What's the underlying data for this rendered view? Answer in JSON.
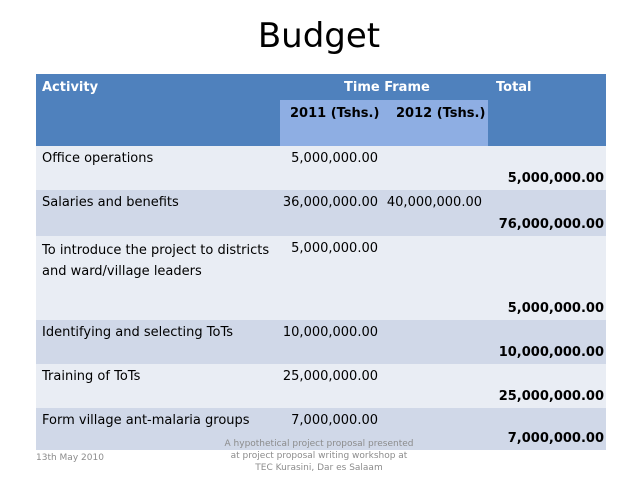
{
  "slide": {
    "title": "Budget"
  },
  "table": {
    "header": {
      "activity": "Activity",
      "time_frame": "Time Frame",
      "total": "Total",
      "year_2011": "2011 (Tshs.)",
      "year_2012": "2012 (Tshs.)"
    },
    "rows": [
      {
        "activity": "Office operations",
        "y2011": "5,000,000.00",
        "y2012": "",
        "total": "5,000,000.00"
      },
      {
        "activity": "Salaries and benefits",
        "y2011": "36,000,000.00",
        "y2012": "40,000,000.00",
        "total": "76,000,000.00"
      },
      {
        "activity": "To introduce the project to districts and ward/village leaders",
        "y2011": "5,000,000.00",
        "y2012": "",
        "total": "5,000,000.00"
      },
      {
        "activity": "Identifying and selecting ToTs",
        "y2011": "10,000,000.00",
        "y2012": "",
        "total": "10,000,000.00"
      },
      {
        "activity": "Training of ToTs",
        "y2011": "25,000,000.00",
        "y2012": "",
        "total": "25,000,000.00"
      },
      {
        "activity": "Form village ant-malaria groups",
        "y2011": "7,000,000.00",
        "y2012": "",
        "total": "7,000,000.00"
      }
    ]
  },
  "footer": {
    "date": "13th May 2010",
    "caption": "A hypothetical project proposal presented at project proposal writing workshop at TEC Kurasini, Dar es Salaam"
  }
}
